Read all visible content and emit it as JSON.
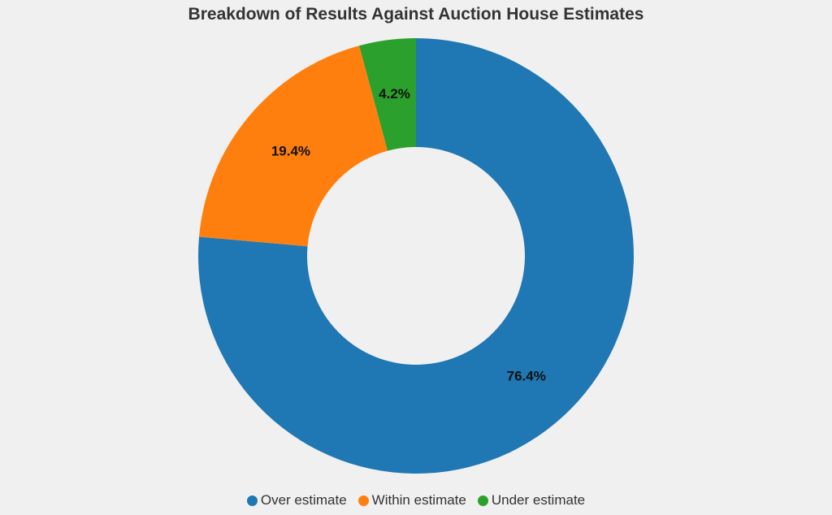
{
  "chart_data": {
    "type": "pie",
    "title": "Breakdown of Results Against Auction House Estimates",
    "categories": [
      "Over estimate",
      "Within estimate",
      "Under estimate"
    ],
    "values": [
      76.4,
      19.4,
      4.2
    ],
    "value_labels": [
      "76.4%",
      "19.4%",
      "4.2%"
    ],
    "colors": [
      "#1f77b4",
      "#ff7f0e",
      "#2ca02c"
    ],
    "donut": true,
    "legend_position": "bottom-center"
  }
}
